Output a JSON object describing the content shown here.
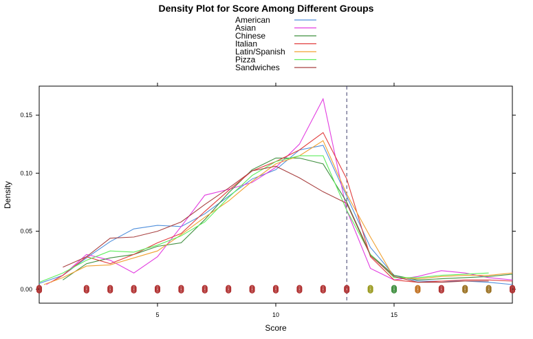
{
  "chart_data": {
    "type": "line",
    "title": "Density Plot for Score Among Different Groups",
    "xlabel": "Score",
    "ylabel": "Density",
    "xlim": [
      0,
      20
    ],
    "ylim": [
      -0.012,
      0.175
    ],
    "x_ticks": [
      5,
      10,
      15
    ],
    "y_ticks": [
      0.0,
      0.05,
      0.1,
      0.15
    ],
    "y_tick_labels": [
      "0.00",
      "0.05",
      "0.10",
      "0.15"
    ],
    "reference_line_x": 13,
    "legend_position": "top-center",
    "grid": false,
    "series": [
      {
        "name": "American",
        "color": "#4f8fdc",
        "points": [
          [
            0,
            0.005
          ],
          [
            1,
            0.012
          ],
          [
            2,
            0.027
          ],
          [
            3,
            0.041
          ],
          [
            4,
            0.052
          ],
          [
            5,
            0.055
          ],
          [
            6,
            0.054
          ],
          [
            7,
            0.065
          ],
          [
            8,
            0.08
          ],
          [
            9,
            0.095
          ],
          [
            10,
            0.103
          ],
          [
            11,
            0.12
          ],
          [
            12,
            0.124
          ],
          [
            13,
            0.08
          ],
          [
            14,
            0.036
          ],
          [
            15,
            0.012
          ],
          [
            16,
            0.007
          ],
          [
            17,
            0.007
          ],
          [
            18,
            0.007
          ],
          [
            19,
            0.006
          ],
          [
            20,
            0.004
          ]
        ]
      },
      {
        "name": "Asian",
        "color": "#e23ce0",
        "points": [
          [
            0.3,
            0.004
          ],
          [
            1,
            0.012
          ],
          [
            2,
            0.03
          ],
          [
            3,
            0.025
          ],
          [
            4,
            0.014
          ],
          [
            5,
            0.028
          ],
          [
            6,
            0.054
          ],
          [
            7,
            0.081
          ],
          [
            8,
            0.086
          ],
          [
            9,
            0.092
          ],
          [
            10,
            0.105
          ],
          [
            11,
            0.125
          ],
          [
            12,
            0.164
          ],
          [
            13,
            0.068
          ],
          [
            14,
            0.018
          ],
          [
            15,
            0.008
          ],
          [
            16,
            0.011
          ],
          [
            17,
            0.016
          ],
          [
            18,
            0.014
          ],
          [
            19,
            0.01
          ],
          [
            20,
            0.008
          ]
        ]
      },
      {
        "name": "Chinese",
        "color": "#3f8f3f",
        "points": [
          [
            1,
            0.008
          ],
          [
            2,
            0.022
          ],
          [
            3,
            0.027
          ],
          [
            4,
            0.03
          ],
          [
            5,
            0.037
          ],
          [
            6,
            0.04
          ],
          [
            7,
            0.06
          ],
          [
            8,
            0.083
          ],
          [
            9,
            0.103
          ],
          [
            10,
            0.113
          ],
          [
            11,
            0.113
          ],
          [
            12,
            0.108
          ],
          [
            13,
            0.075
          ],
          [
            14,
            0.03
          ],
          [
            15,
            0.012
          ],
          [
            16,
            0.008
          ],
          [
            17,
            0.009
          ],
          [
            18,
            0.01
          ],
          [
            19,
            0.011
          ],
          [
            20,
            0.013
          ]
        ]
      },
      {
        "name": "Italian",
        "color": "#e03c3c",
        "points": [
          [
            0.5,
            0.006
          ],
          [
            1,
            0.012
          ],
          [
            2,
            0.028
          ],
          [
            3,
            0.022
          ],
          [
            4,
            0.03
          ],
          [
            5,
            0.04
          ],
          [
            6,
            0.048
          ],
          [
            7,
            0.067
          ],
          [
            8,
            0.085
          ],
          [
            9,
            0.102
          ],
          [
            10,
            0.11
          ],
          [
            11,
            0.12
          ],
          [
            12,
            0.135
          ],
          [
            13,
            0.095
          ],
          [
            14,
            0.028
          ],
          [
            15,
            0.008
          ],
          [
            16,
            0.006
          ],
          [
            17,
            0.007
          ],
          [
            18,
            0.008
          ],
          [
            19,
            0.008
          ],
          [
            20,
            0.007
          ]
        ]
      },
      {
        "name": "Latin/Spanish",
        "color": "#f0a030",
        "points": [
          [
            0.2,
            0.004
          ],
          [
            1,
            0.01
          ],
          [
            2,
            0.02
          ],
          [
            3,
            0.021
          ],
          [
            4,
            0.027
          ],
          [
            5,
            0.033
          ],
          [
            6,
            0.047
          ],
          [
            7,
            0.062
          ],
          [
            8,
            0.076
          ],
          [
            9,
            0.093
          ],
          [
            10,
            0.108
          ],
          [
            11,
            0.115
          ],
          [
            12,
            0.128
          ],
          [
            13,
            0.082
          ],
          [
            14,
            0.045
          ],
          [
            15,
            0.01
          ],
          [
            16,
            0.009
          ],
          [
            17,
            0.011
          ],
          [
            18,
            0.012
          ],
          [
            19,
            0.012
          ],
          [
            20,
            0.014
          ]
        ]
      },
      {
        "name": "Pizza",
        "color": "#5cee5c",
        "points": [
          [
            0,
            0.006
          ],
          [
            1,
            0.014
          ],
          [
            2,
            0.025
          ],
          [
            3,
            0.033
          ],
          [
            4,
            0.032
          ],
          [
            5,
            0.038
          ],
          [
            6,
            0.046
          ],
          [
            7,
            0.058
          ],
          [
            8,
            0.079
          ],
          [
            9,
            0.098
          ],
          [
            10,
            0.11
          ],
          [
            11,
            0.115
          ],
          [
            12,
            0.115
          ],
          [
            13,
            0.068
          ],
          [
            14,
            0.03
          ],
          [
            15,
            0.01
          ],
          [
            16,
            0.01
          ],
          [
            17,
            0.012
          ],
          [
            18,
            0.013
          ],
          [
            19,
            0.014
          ]
        ]
      },
      {
        "name": "Sandwiches",
        "color": "#a84040",
        "points": [
          [
            1,
            0.019
          ],
          [
            2,
            0.028
          ],
          [
            3,
            0.044
          ],
          [
            4,
            0.045
          ],
          [
            5,
            0.05
          ],
          [
            6,
            0.058
          ],
          [
            7,
            0.073
          ],
          [
            8,
            0.087
          ],
          [
            9,
            0.102
          ],
          [
            10,
            0.106
          ],
          [
            11,
            0.096
          ],
          [
            12,
            0.084
          ],
          [
            13,
            0.074
          ],
          [
            14,
            0.029
          ],
          [
            15,
            0.011
          ],
          [
            16,
            0.006
          ],
          [
            17,
            0.006
          ],
          [
            18,
            0.007
          ],
          [
            19,
            0.007
          ]
        ]
      }
    ],
    "rug": {
      "y": 0.0,
      "points": [
        {
          "x": 0,
          "color": "#b03030"
        },
        {
          "x": 2,
          "color": "#b03030"
        },
        {
          "x": 3,
          "color": "#b03030"
        },
        {
          "x": 4,
          "color": "#b03030"
        },
        {
          "x": 5,
          "color": "#b03030"
        },
        {
          "x": 6,
          "color": "#b03030"
        },
        {
          "x": 7,
          "color": "#b03030"
        },
        {
          "x": 8,
          "color": "#b03030"
        },
        {
          "x": 9,
          "color": "#b03030"
        },
        {
          "x": 10,
          "color": "#b03030"
        },
        {
          "x": 11,
          "color": "#b03030"
        },
        {
          "x": 12,
          "color": "#b03030"
        },
        {
          "x": 13,
          "color": "#b03030"
        },
        {
          "x": 14,
          "color": "#9a9a20"
        },
        {
          "x": 15,
          "color": "#3f8f3f"
        },
        {
          "x": 16,
          "color": "#c07020"
        },
        {
          "x": 17,
          "color": "#b03030"
        },
        {
          "x": 18,
          "color": "#9a7020"
        },
        {
          "x": 19,
          "color": "#9a7020"
        },
        {
          "x": 20,
          "color": "#b03030"
        }
      ]
    }
  }
}
